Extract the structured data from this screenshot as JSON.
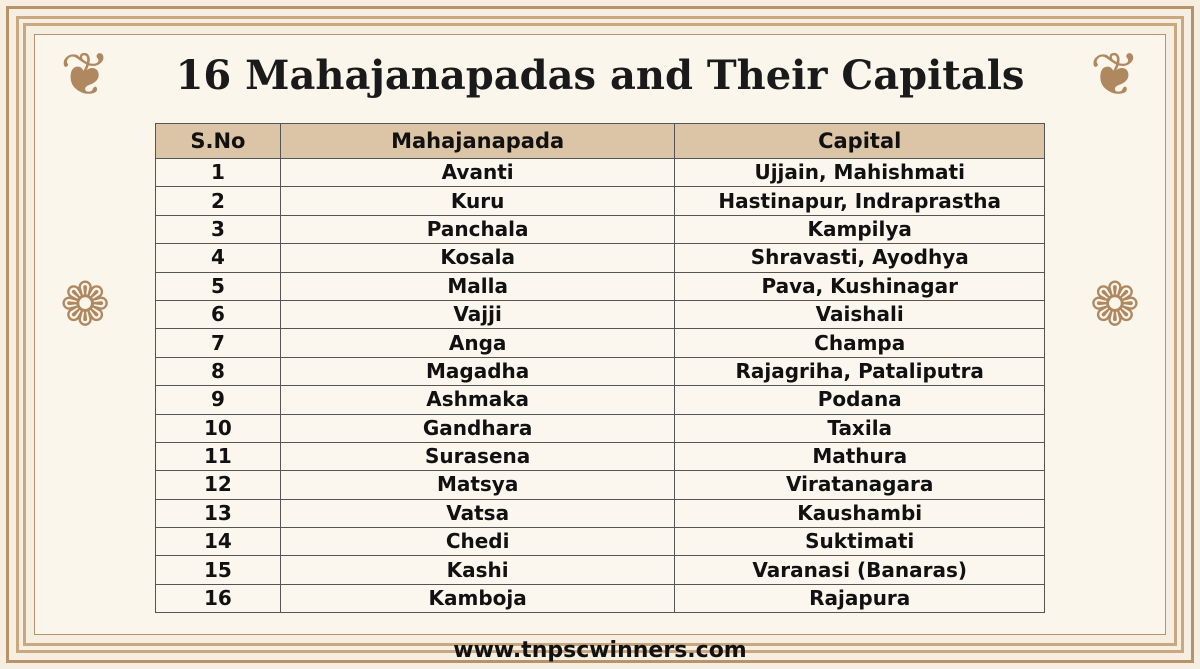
{
  "title": "16 Mahajanapadas and Their Capitals",
  "table": {
    "header": [
      "S.No",
      "Mahajanapada",
      "Capital"
    ],
    "rows": [
      [
        "1",
        "Avanti",
        "Ujjain, Mahishmati"
      ],
      [
        "2",
        "Kuru",
        "Hastinapur, Indraprastha"
      ],
      [
        "3",
        "Panchala",
        "Kampilya"
      ],
      [
        "4",
        "Kosala",
        "Shravasti, Ayodhya"
      ],
      [
        "5",
        "Malla",
        "Pava, Kushinagar"
      ],
      [
        "6",
        "Vajji",
        "Vaishali"
      ],
      [
        "7",
        "Anga",
        "Champa"
      ],
      [
        "8",
        "Magadha",
        "Rajagriha, Pataliputra"
      ],
      [
        "9",
        "Ashmaka",
        "Podana"
      ],
      [
        "10",
        "Gandhara",
        "Taxila"
      ],
      [
        "11",
        "Surasena",
        "Mathura"
      ],
      [
        "12",
        "Matsya",
        "Viratanagara"
      ],
      [
        "13",
        "Vatsa",
        "Kaushambi"
      ],
      [
        "14",
        "Chedi",
        "Suktimati"
      ],
      [
        "15",
        "Kashi",
        "Varanasi (Banaras)"
      ],
      [
        "16",
        "Kamboja",
        "Rajapura"
      ]
    ]
  },
  "footer": "www.tnpscwinners.com"
}
